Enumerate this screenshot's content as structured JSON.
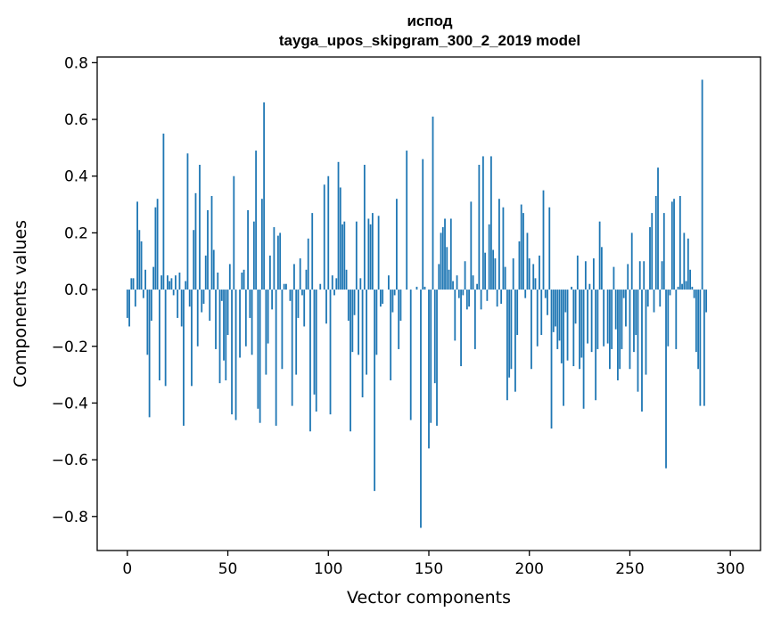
{
  "chart_data": {
    "type": "bar",
    "title_line1": "испод",
    "title_line2": "tayga_upos_skipgram_300_2_2019 model",
    "xlabel": "Vector components",
    "ylabel": "Components values",
    "xlim": [
      -15,
      315
    ],
    "ylim": [
      -0.92,
      0.82
    ],
    "xticks": [
      0,
      50,
      100,
      150,
      200,
      250,
      300
    ],
    "xtick_labels": [
      "0",
      "50",
      "100",
      "150",
      "200",
      "250",
      "300"
    ],
    "yticks": [
      -0.8,
      -0.6,
      -0.4,
      -0.2,
      0.0,
      0.2,
      0.4,
      0.6,
      0.8
    ],
    "ytick_labels": [
      "−0.8",
      "−0.6",
      "−0.4",
      "−0.2",
      "0.0",
      "0.2",
      "0.4",
      "0.6",
      "0.8"
    ],
    "bar_color": "#1f77b4",
    "values": [
      -0.1,
      -0.13,
      0.04,
      0.04,
      -0.06,
      0.31,
      0.21,
      0.17,
      -0.03,
      0.07,
      -0.23,
      -0.45,
      -0.11,
      0.08,
      0.29,
      0.32,
      -0.32,
      0.05,
      0.55,
      -0.34,
      0.05,
      0.03,
      0.04,
      -0.02,
      0.05,
      -0.1,
      0.06,
      -0.13,
      -0.48,
      0.03,
      0.48,
      -0.06,
      -0.34,
      0.21,
      0.34,
      -0.2,
      0.44,
      -0.08,
      -0.05,
      0.12,
      0.28,
      -0.11,
      0.33,
      0.14,
      -0.21,
      0.06,
      -0.33,
      -0.04,
      -0.25,
      -0.32,
      -0.16,
      0.09,
      -0.44,
      0.4,
      -0.46,
      0.0,
      -0.24,
      0.06,
      0.07,
      -0.2,
      0.28,
      -0.1,
      -0.23,
      0.24,
      0.49,
      -0.42,
      -0.47,
      0.32,
      0.66,
      -0.3,
      -0.19,
      0.12,
      -0.07,
      0.22,
      -0.48,
      0.19,
      0.2,
      -0.28,
      0.02,
      0.02,
      0.0,
      -0.04,
      -0.41,
      0.09,
      -0.3,
      -0.1,
      0.11,
      -0.02,
      -0.13,
      0.07,
      0.18,
      -0.5,
      0.27,
      -0.37,
      -0.43,
      0.0,
      0.02,
      0.0,
      0.37,
      -0.12,
      0.4,
      -0.44,
      0.05,
      -0.02,
      0.04,
      0.45,
      0.36,
      0.23,
      0.24,
      0.07,
      -0.11,
      -0.5,
      -0.22,
      -0.09,
      0.24,
      -0.23,
      0.04,
      -0.38,
      0.44,
      -0.3,
      0.25,
      0.23,
      0.27,
      -0.71,
      -0.23,
      0.26,
      -0.06,
      -0.05,
      0.0,
      0.0,
      0.05,
      -0.32,
      -0.08,
      -0.02,
      0.32,
      -0.21,
      -0.11,
      0.0,
      0.0,
      0.49,
      0.0,
      -0.46,
      0.0,
      0.0,
      0.01,
      0.0,
      -0.84,
      0.46,
      0.01,
      0.0,
      -0.56,
      -0.47,
      0.61,
      -0.33,
      -0.48,
      0.09,
      0.2,
      0.22,
      0.25,
      0.15,
      0.07,
      0.25,
      0.03,
      -0.18,
      0.05,
      -0.03,
      -0.27,
      -0.02,
      0.1,
      -0.07,
      -0.06,
      0.31,
      0.05,
      -0.21,
      0.02,
      0.44,
      -0.07,
      0.47,
      0.13,
      -0.04,
      0.23,
      0.47,
      0.14,
      0.11,
      -0.06,
      0.32,
      -0.05,
      0.29,
      0.08,
      -0.39,
      -0.31,
      -0.28,
      0.11,
      -0.36,
      -0.16,
      0.17,
      0.3,
      0.27,
      -0.03,
      0.2,
      0.11,
      -0.28,
      0.09,
      0.04,
      -0.2,
      0.12,
      -0.16,
      0.35,
      -0.03,
      -0.09,
      0.29,
      -0.49,
      -0.15,
      -0.13,
      -0.21,
      -0.18,
      -0.26,
      -0.41,
      -0.08,
      -0.25,
      0.0,
      0.01,
      -0.27,
      -0.12,
      0.12,
      -0.28,
      -0.24,
      -0.42,
      0.1,
      -0.19,
      0.02,
      -0.22,
      0.11,
      -0.39,
      -0.21,
      0.24,
      0.15,
      -0.2,
      0.0,
      -0.19,
      -0.28,
      -0.21,
      0.08,
      -0.14,
      -0.32,
      -0.28,
      -0.21,
      -0.03,
      -0.13,
      0.09,
      -0.28,
      0.2,
      -0.22,
      -0.16,
      -0.36,
      0.1,
      -0.43,
      0.1,
      -0.3,
      -0.06,
      0.22,
      0.27,
      -0.08,
      0.33,
      0.43,
      -0.06,
      0.1,
      0.27,
      -0.63,
      -0.2,
      -0.02,
      0.31,
      0.32,
      -0.21,
      0.01,
      0.33,
      0.02,
      0.2,
      0.03,
      0.18,
      0.07,
      0.01,
      -0.03,
      -0.22,
      -0.28,
      -0.41,
      0.74,
      -0.41,
      -0.08
    ]
  }
}
